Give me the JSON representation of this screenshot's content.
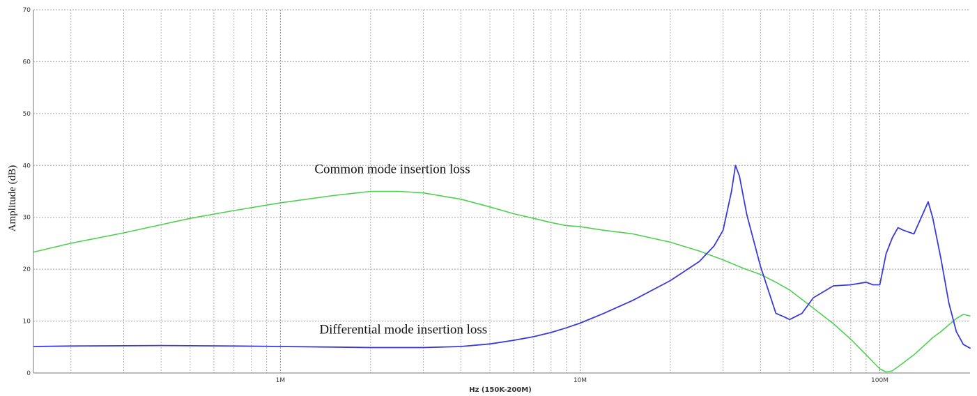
{
  "chart_data": {
    "type": "line",
    "title": "",
    "xlabel": "Hz  (150K-200M)",
    "ylabel": "Amplitude (dB)",
    "x_scale": "log",
    "xlim": [
      150000,
      200000000
    ],
    "ylim": [
      0,
      70
    ],
    "y_ticks": [
      "0",
      "10",
      "20",
      "30",
      "40",
      "50",
      "60",
      "70"
    ],
    "x_ticks": [
      {
        "value": 1000000,
        "label": "1M"
      },
      {
        "value": 10000000,
        "label": "10M"
      },
      {
        "value": 100000000,
        "label": "100M"
      }
    ],
    "grid": true,
    "annotations": [
      {
        "text": "Common mode insertion loss",
        "x": 1300000,
        "y": 38.5
      },
      {
        "text": "Differential mode insertion loss",
        "x": 1350000,
        "y": 7.6
      }
    ],
    "series": [
      {
        "color": "#4fcf4f",
        "x": [
          150000,
          200000,
          300000,
          500000,
          700000,
          1000000,
          1500000,
          2000000,
          2500000,
          3000000,
          4000000,
          5000000,
          6000000,
          7000000,
          8000000,
          9000000,
          10000000,
          12000000,
          15000000,
          20000000,
          25000000,
          30000000,
          35000000,
          40000000,
          45000000,
          50000000,
          60000000,
          70000000,
          80000000,
          90000000,
          100000000,
          105000000,
          110000000,
          115000000,
          120000000,
          130000000,
          140000000,
          150000000,
          160000000,
          180000000,
          190000000,
          200000000
        ],
        "values": [
          23.3,
          25.0,
          27.0,
          29.8,
          31.3,
          32.8,
          34.2,
          35.0,
          35.0,
          34.7,
          33.5,
          32.0,
          30.7,
          29.8,
          29.0,
          28.4,
          28.2,
          27.5,
          26.8,
          25.2,
          23.5,
          21.8,
          20.2,
          19.0,
          17.5,
          16.0,
          12.5,
          9.5,
          6.5,
          3.5,
          0.8,
          0.2,
          0.4,
          1.2,
          2.0,
          3.5,
          5.2,
          6.8,
          8.0,
          10.5,
          11.3,
          11.0
        ]
      },
      {
        "color": "#3a3ad8",
        "x": [
          150000,
          200000,
          400000,
          700000,
          1000000,
          1500000,
          2000000,
          3000000,
          4000000,
          5000000,
          6000000,
          7000000,
          8000000,
          9000000,
          10000000,
          12000000,
          15000000,
          20000000,
          25000000,
          28000000,
          30000000,
          32000000,
          33000000,
          34000000,
          36000000,
          40000000,
          45000000,
          48000000,
          50000000,
          55000000,
          60000000,
          70000000,
          80000000,
          90000000,
          95000000,
          100000000,
          105000000,
          110000000,
          115000000,
          120000000,
          130000000,
          140000000,
          145000000,
          150000000,
          160000000,
          170000000,
          180000000,
          190000000,
          200000000
        ],
        "values": [
          5.1,
          5.2,
          5.3,
          5.2,
          5.1,
          5.0,
          4.9,
          4.9,
          5.1,
          5.6,
          6.3,
          7.0,
          7.8,
          8.7,
          9.6,
          11.5,
          14.0,
          17.8,
          21.5,
          24.5,
          27.5,
          35.0,
          40.0,
          38.0,
          30.5,
          20.5,
          11.5,
          10.8,
          10.3,
          11.5,
          14.5,
          16.8,
          17.0,
          17.5,
          17.0,
          17.0,
          23.0,
          26.0,
          28.0,
          27.5,
          26.8,
          31.0,
          33.0,
          30.0,
          22.0,
          13.5,
          8.0,
          5.5,
          4.8
        ]
      }
    ]
  }
}
